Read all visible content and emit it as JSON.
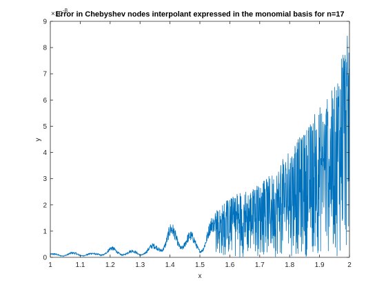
{
  "chart_data": {
    "type": "line",
    "title": "Error in Chebyshev nodes interpolant  expressed in the monomial basis for n=17",
    "xlabel": "x",
    "ylabel": "y",
    "exponent_label": "×10",
    "exponent_power": "-8",
    "xlim": [
      1,
      2
    ],
    "ylim": [
      0,
      9
    ],
    "x_ticks": [
      1,
      1.1,
      1.2,
      1.3,
      1.4,
      1.5,
      1.6,
      1.7,
      1.8,
      1.9,
      2
    ],
    "x_tick_labels": [
      "1",
      "1.1",
      "1.2",
      "1.3",
      "1.4",
      "1.5",
      "1.6",
      "1.7",
      "1.8",
      "1.9",
      "2"
    ],
    "y_ticks": [
      0,
      1,
      2,
      3,
      4,
      5,
      6,
      7,
      8,
      9
    ],
    "y_tick_labels": [
      "0",
      "1",
      "2",
      "3",
      "4",
      "5",
      "6",
      "7",
      "8",
      "9"
    ],
    "series_color": "#0072BD",
    "envelope": {
      "x": [
        1.0,
        1.05,
        1.1,
        1.15,
        1.2,
        1.25,
        1.3,
        1.35,
        1.4,
        1.45,
        1.5,
        1.55,
        1.6,
        1.65,
        1.7,
        1.75,
        1.8,
        1.85,
        1.9,
        1.95,
        1.98,
        2.0
      ],
      "y": [
        0.15,
        0.2,
        0.22,
        0.18,
        0.45,
        0.3,
        0.3,
        0.6,
        1.35,
        1.2,
        0.75,
        1.8,
        2.3,
        2.6,
        2.8,
        3.3,
        4.2,
        4.8,
        5.8,
        6.5,
        8.7,
        8.4
      ]
    }
  }
}
